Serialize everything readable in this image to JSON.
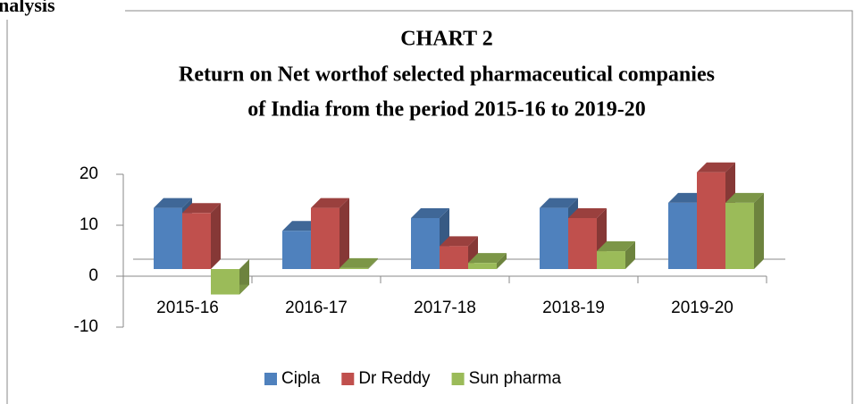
{
  "heading": "nalysis",
  "chart_data": {
    "type": "bar3d",
    "title": [
      "CHART 2",
      "Return on Net worthof selected pharmaceutical companies",
      "of India from the period 2015-16 to 2019-20"
    ],
    "categories": [
      "2015-16",
      "2016-17",
      "2017-18",
      "2018-19",
      "2019-20"
    ],
    "series": [
      {
        "name": "Cipla",
        "color": "#4f81bd",
        "values": [
          12,
          7.5,
          10,
          12,
          13
        ]
      },
      {
        "name": "Dr Reddy",
        "color": "#c0504d",
        "values": [
          11,
          12,
          4.5,
          10,
          19
        ]
      },
      {
        "name": "Sun pharma",
        "color": "#9bbb59",
        "values": [
          -5,
          0.2,
          1.2,
          3.5,
          13
        ]
      }
    ],
    "ylim": [
      -10,
      20
    ],
    "yticks": [
      -10,
      0,
      10,
      20
    ],
    "legend": "bottom"
  }
}
